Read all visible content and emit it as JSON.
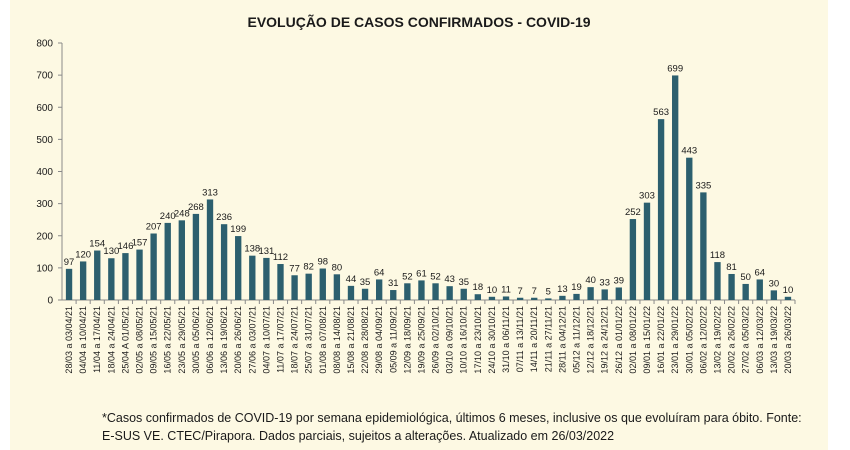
{
  "chart_data": {
    "type": "bar",
    "title": "EVOLUÇÃO DE CASOS CONFIRMADOS -  COVID-19",
    "xlabel": "",
    "ylabel": "",
    "ylim": [
      0,
      800
    ],
    "yticks": [
      0,
      100,
      200,
      300,
      400,
      500,
      600,
      700,
      800
    ],
    "grid": false,
    "bar_color": "#2c5f6e",
    "categories": [
      "28/03 a 03/04/21",
      "04/04 a 10/04/21",
      "11/04 a 17/04/21",
      "18/04 a 24/04/21",
      "25/04 A 01/05/21",
      "02/05 a 08/05/21",
      "09/05 a 15/05/21",
      "16/05 a 22/05/21",
      "23/05 a 29/05/21",
      "30/05 a 05/06/21",
      "06/06 a 12/06/21",
      "13/06 a 19/06/21",
      "20/06 a 26/06/21",
      "27/06 a 03/07/21",
      "04/07 a 10/07/21",
      "11/07 a 17/07/21",
      "18/07 a 24/07/21",
      "25/07 a 31/07/21",
      "01/08 a 07/08/21",
      "08/08 a 14/08/21",
      "15/08 a 21/08/21",
      "22/08 a 28/08/21",
      "29/08 a 04/09/21",
      "05/09 a 11/09/21",
      "12/09 a 18/09/21",
      "19/09 a 25/09/21",
      "26/09 a 02/10/21",
      "03/10 a 09/10/21",
      "10/10 a 16/10/21",
      "17/10 a 23/10/21",
      "24/10 a 30/10/21",
      "31/10 a 06/11/21",
      "07/11 a 13/11/21",
      "14/11 a 20/11/21",
      "21/11 a 27/11/21",
      "28/11 a 04/12/21",
      "05/12 a 11/12/21",
      "12/12 a 18/12/21",
      "19/12 a 24/12/21",
      "26/12 a 01/01/22",
      "02/01 a 08/01/22",
      "09/01 a 15/01/22",
      "16/01 a 22/01/22",
      "23/01 a 29/01/22",
      "30/01 a 05/02/22",
      "06/02 a 12/02/22",
      "13/02 a 19/02/22",
      "20/02 a 26/02/22",
      "27/02 a 05/03/22",
      "06/03 a 12/03/22",
      "13/03 a 19/03/22",
      "20/03 a 26/03/22"
    ],
    "values": [
      97,
      120,
      154,
      130,
      146,
      157,
      207,
      240,
      248,
      268,
      313,
      236,
      199,
      138,
      131,
      112,
      77,
      82,
      98,
      80,
      44,
      35,
      64,
      31,
      52,
      61,
      52,
      43,
      35,
      18,
      10,
      11,
      7,
      7,
      5,
      13,
      19,
      40,
      33,
      39,
      252,
      303,
      563,
      699,
      443,
      335,
      118,
      81,
      50,
      64,
      30,
      10
    ]
  },
  "footnote": "*Casos confirmados de COVID-19 por semana epidemiológica, últimos 6 meses, inclusive os que evoluíram para óbito. Fonte: E-SUS VE. CTEC/Pirapora. Dados parciais, sujeitos a alterações. Atualizado em 26/03/2022"
}
